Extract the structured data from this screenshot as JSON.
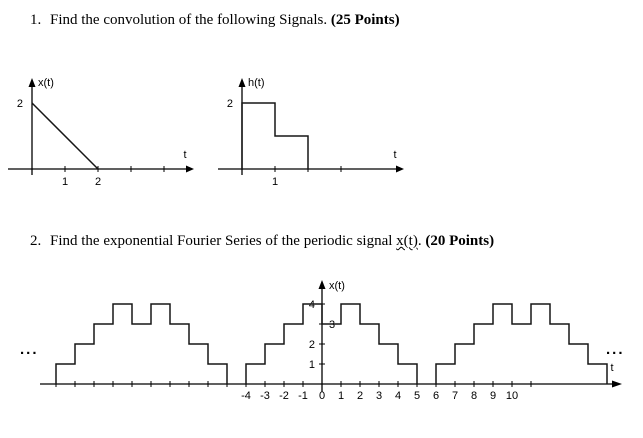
{
  "questions": {
    "q1": {
      "number": "1.",
      "text": "Find the convolution of the following Signals.",
      "points": "(25 Points)"
    },
    "q2": {
      "number": "2.",
      "text": "Find the exponential Fourier Series of the periodic signal",
      "signal": "x(t)",
      "suffix": ".",
      "points": "(20 Points)"
    }
  },
  "graph_x": {
    "ylabel": "x(t)",
    "xlabel": "t",
    "y_value_label": "2",
    "xticks": [
      1,
      2,
      3,
      4
    ],
    "xtick_labels": [
      "1",
      "2"
    ],
    "line_points": [
      [
        0,
        2
      ],
      [
        2,
        0
      ]
    ]
  },
  "graph_h": {
    "ylabel": "h(t)",
    "xlabel": "t",
    "y_value_label": "2",
    "xticks": [
      1,
      2,
      3
    ],
    "xtick_labels": [
      "1"
    ],
    "steps": [
      {
        "from": 0,
        "to": 1,
        "h": 2
      },
      {
        "from": 1,
        "to": 2,
        "h": 1
      }
    ]
  },
  "graph_periodic": {
    "ylabel": "x(t)",
    "xlabel": "t",
    "ytick_labels": [
      "4",
      "3",
      "2",
      "1"
    ],
    "ytick_values": [
      4,
      3,
      2,
      1
    ],
    "xtick_labels": [
      "-4",
      "-3",
      "-2",
      "-1",
      "0",
      "1",
      "2",
      "3",
      "4",
      "5",
      "6",
      "7",
      "8",
      "9",
      "10"
    ],
    "xlabel_start": -4,
    "xtick_min": -14,
    "xtick_max": 11,
    "ellipsis_left": "...",
    "ellipsis_right": "...",
    "step_heights": [
      1,
      2,
      3,
      4,
      3,
      4,
      3,
      2,
      1
    ],
    "period_start_times": [
      -14,
      -4,
      6
    ]
  }
}
